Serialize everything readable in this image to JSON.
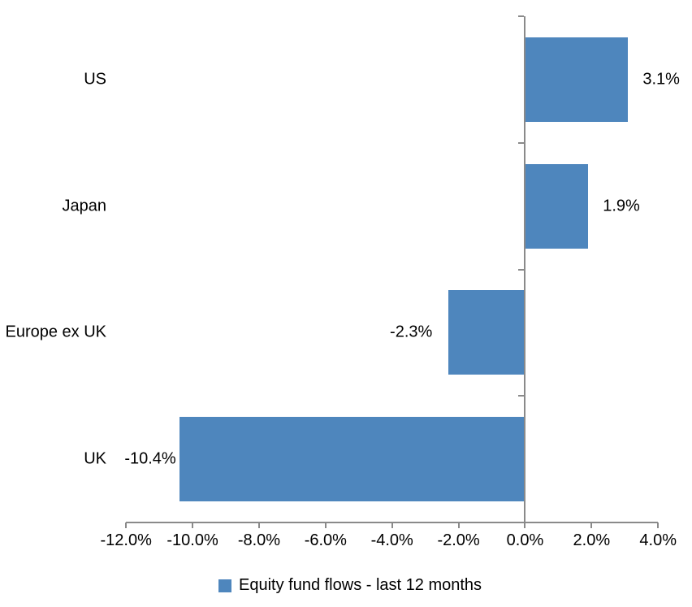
{
  "chart_data": {
    "type": "bar",
    "orientation": "horizontal",
    "categories": [
      "US",
      "Japan",
      "Europe ex UK",
      "UK"
    ],
    "values": [
      3.1,
      1.9,
      -2.3,
      -10.4
    ],
    "points": [
      {
        "category": "US",
        "value": 3.1,
        "label": "3.1%",
        "label_side": "right",
        "label_gap": 18
      },
      {
        "category": "Japan",
        "value": 1.9,
        "label": "1.9%",
        "label_side": "right",
        "label_gap": 18
      },
      {
        "category": "Europe ex UK",
        "value": -2.3,
        "label": "-2.3%",
        "label_side": "left",
        "label_gap": 20
      },
      {
        "category": "UK",
        "value": -10.4,
        "label": "-10.4%",
        "label_side": "left",
        "label_gap": 4
      }
    ],
    "x_ticks": [
      "-12.0%",
      "-10.0%",
      "-8.0%",
      "-6.0%",
      "-4.0%",
      "-2.0%",
      "0.0%",
      "2.0%",
      "4.0%"
    ],
    "x_tick_values": [
      -12,
      -10,
      -8,
      -6,
      -4,
      -2,
      0,
      2,
      4
    ],
    "xlim": [
      -12,
      4
    ],
    "legend": "Equity fund flows - last 12 months",
    "legend_position": "bottom",
    "grid": "off",
    "bar_color": "#4e86bd",
    "axis_color": "#8a8a8a",
    "text_color": "#000000"
  }
}
